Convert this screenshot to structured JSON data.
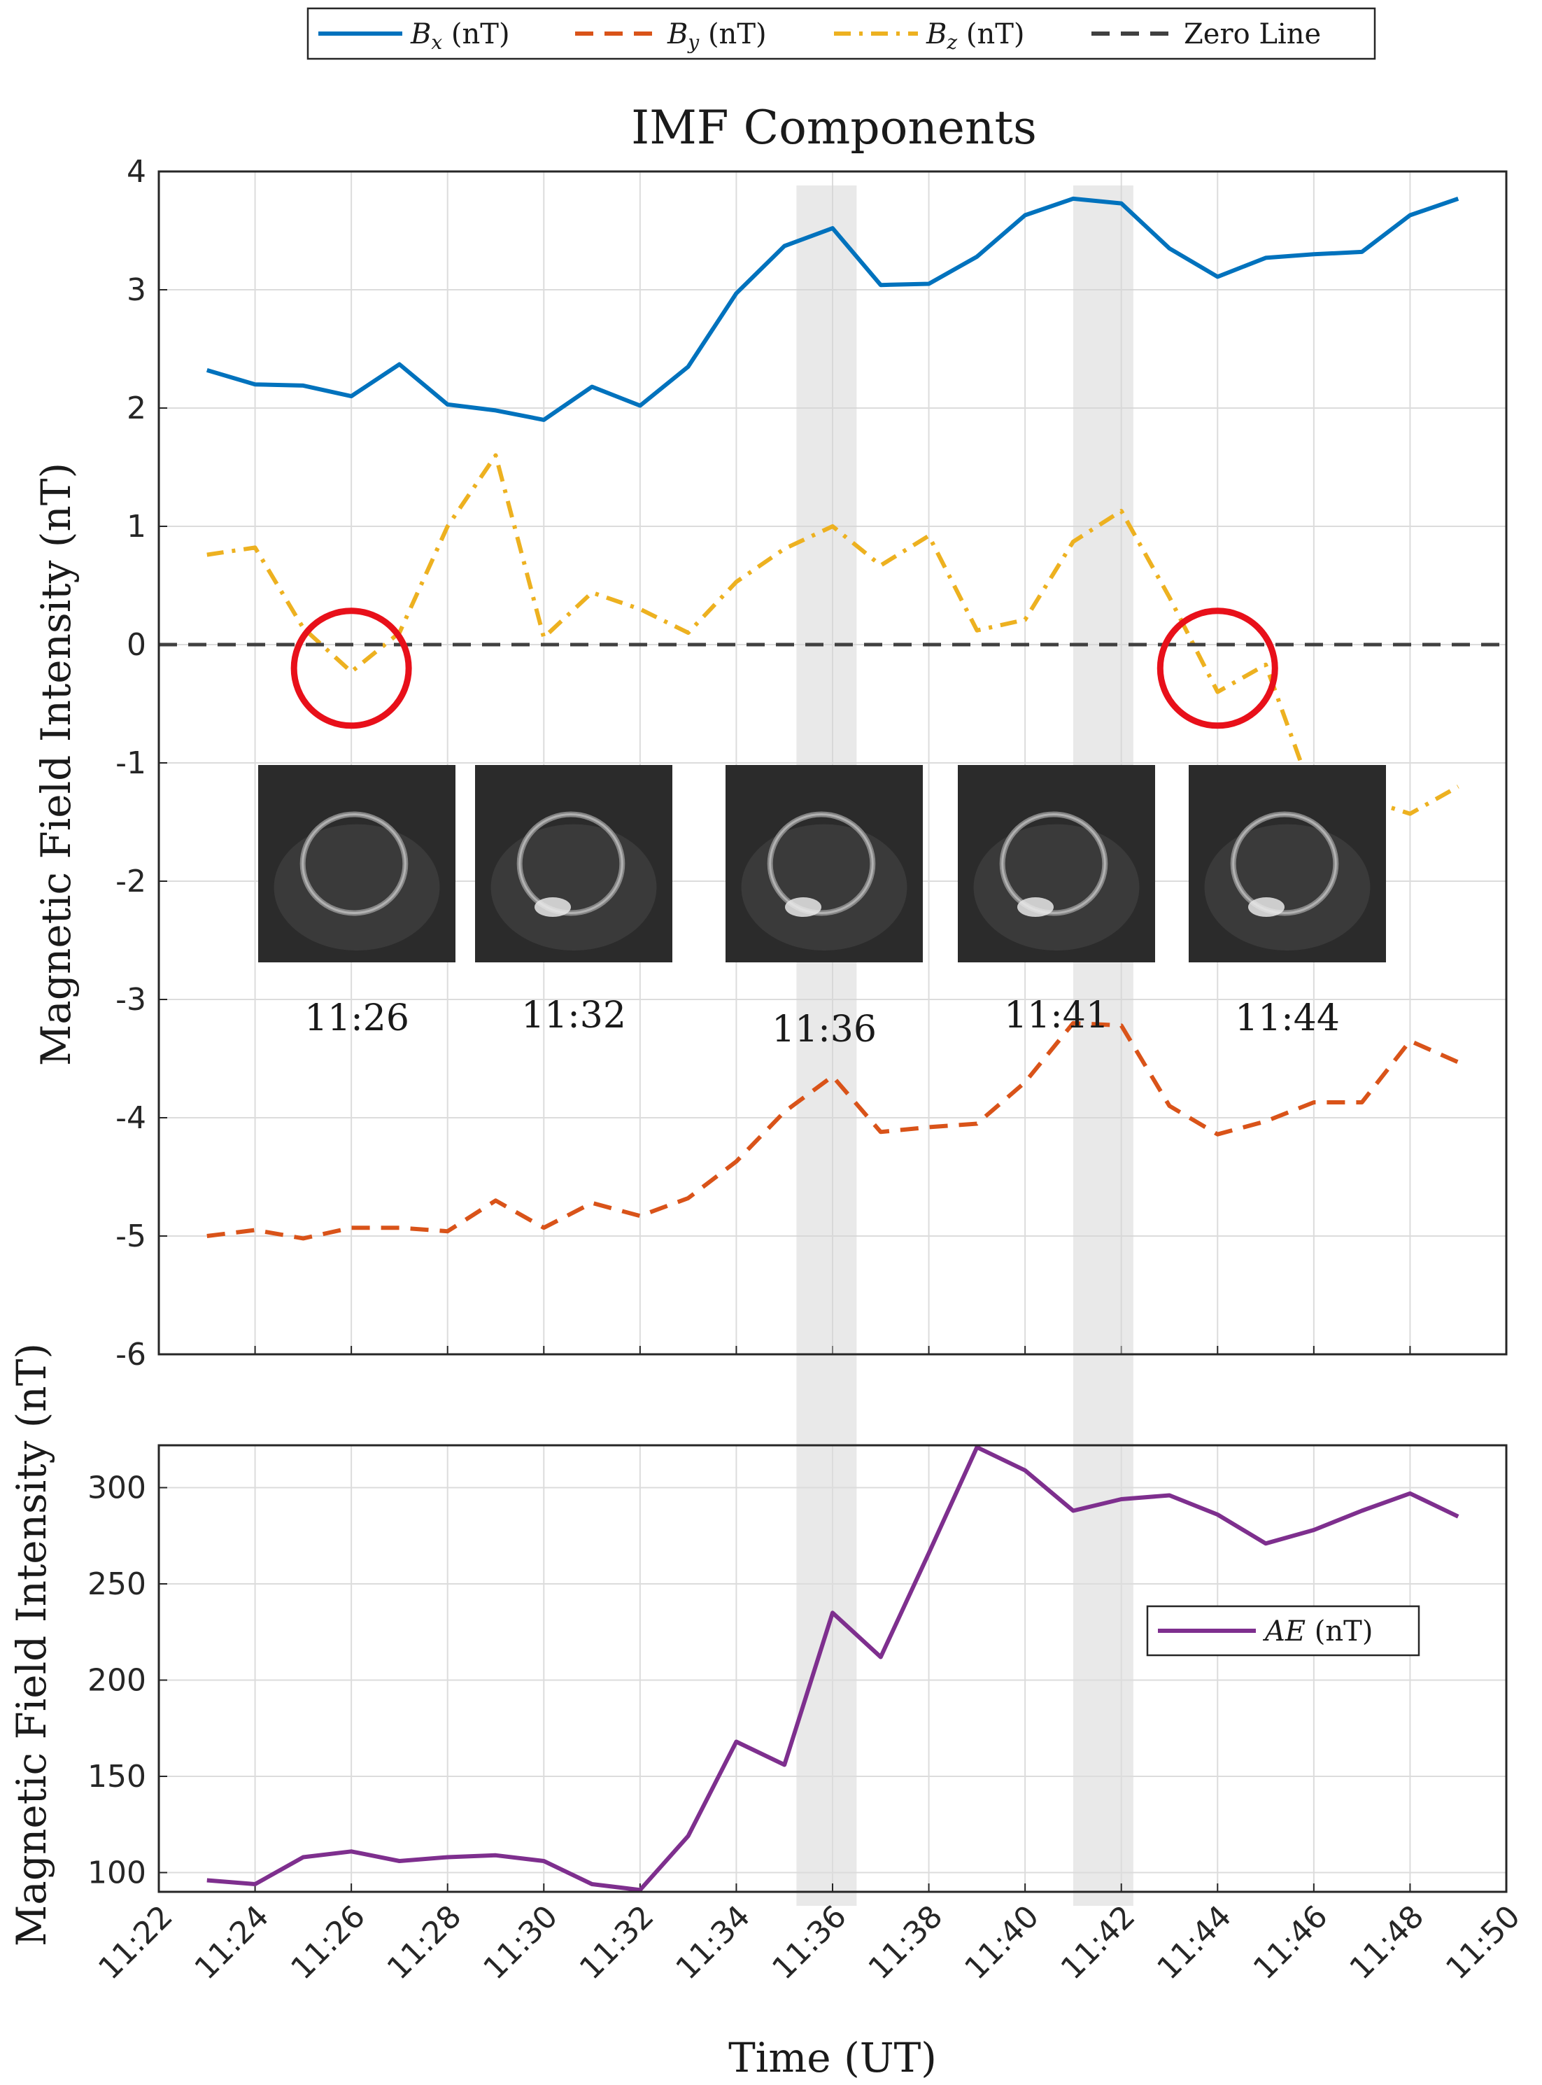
{
  "chart_data": [
    {
      "type": "line",
      "title": "IMF Components",
      "xlabel": "",
      "ylabel": "Magnetic Field Intensity (nT)",
      "x_range": [
        "11:22",
        "11:50"
      ],
      "ylim": [
        -6,
        4
      ],
      "y_ticks": [
        "-6",
        "-5",
        "-4",
        "-3",
        "-2",
        "-1",
        "0",
        "1",
        "2",
        "3",
        "4"
      ],
      "grid": true,
      "legend_position": "top (outside)",
      "x": [
        "11:23",
        "11:24",
        "11:25",
        "11:26",
        "11:27",
        "11:28",
        "11:29",
        "11:30",
        "11:31",
        "11:32",
        "11:33",
        "11:34",
        "11:35",
        "11:36",
        "11:37",
        "11:38",
        "11:39",
        "11:40",
        "11:41",
        "11:42",
        "11:43",
        "11:44",
        "11:45",
        "11:46",
        "11:47",
        "11:48",
        "11:49"
      ],
      "series": [
        {
          "name": "Bx (nT)",
          "label_main": "B",
          "label_sub": "x",
          "label_unit": " (nT)",
          "color": "#0072BD",
          "dash": "solid",
          "values": [
            2.32,
            2.2,
            2.19,
            2.1,
            2.37,
            2.03,
            1.98,
            1.9,
            2.18,
            2.02,
            2.35,
            2.97,
            3.37,
            3.52,
            3.04,
            3.05,
            3.28,
            3.63,
            3.77,
            3.73,
            3.35,
            3.11,
            3.27,
            3.3,
            3.32,
            3.63,
            3.77
          ]
        },
        {
          "name": "By (nT)",
          "label_main": "B",
          "label_sub": "y",
          "label_unit": " (nT)",
          "color": "#D95319",
          "dash": "dashed",
          "values": [
            -5.0,
            -4.95,
            -5.02,
            -4.93,
            -4.93,
            -4.96,
            -4.7,
            -4.93,
            -4.72,
            -4.83,
            -4.68,
            -4.37,
            -3.95,
            -3.65,
            -4.12,
            -4.08,
            -4.05,
            -3.7,
            -3.2,
            -3.22,
            -3.9,
            -4.14,
            -4.03,
            -3.87,
            -3.87,
            -3.35,
            -3.53
          ]
        },
        {
          "name": "Bz (nT)",
          "label_main": "B",
          "label_sub": "z",
          "label_unit": " (nT)",
          "color": "#EDB120",
          "dash": "dashdot",
          "values": [
            0.76,
            0.82,
            0.14,
            -0.23,
            0.1,
            1.0,
            1.6,
            0.06,
            0.44,
            0.3,
            0.1,
            0.53,
            0.81,
            1.0,
            0.67,
            0.92,
            0.12,
            0.21,
            0.87,
            1.13,
            0.4,
            -0.4,
            -0.17,
            -1.3,
            -1.3,
            -1.43,
            -1.2
          ]
        },
        {
          "name": "Zero Line",
          "color": "#404040",
          "dash": "dashed",
          "values": "constant 0"
        }
      ],
      "highlight_bands": [
        [
          "11:35:15",
          "11:36:30"
        ],
        [
          "11:41:00",
          "11:42:15"
        ]
      ],
      "annotations": {
        "circles_at": [
          "11:26",
          "11:44"
        ],
        "thumbnails": [
          "11:26",
          "11:32",
          "11:36",
          "11:41",
          "11:44"
        ]
      }
    },
    {
      "type": "line",
      "title": "",
      "xlabel": "Time (UT)",
      "ylabel": "Magnetic Field Intensity (nT)",
      "x_ticks": [
        "11:22",
        "11:24",
        "11:26",
        "11:28",
        "11:30",
        "11:32",
        "11:34",
        "11:36",
        "11:38",
        "11:40",
        "11:42",
        "11:44",
        "11:46",
        "11:48",
        "11:50"
      ],
      "ylim": [
        90,
        322
      ],
      "y_ticks": [
        "100",
        "150",
        "200",
        "250",
        "300"
      ],
      "grid": true,
      "legend_position": "middle-right (inside)",
      "x": [
        "11:23",
        "11:24",
        "11:25",
        "11:26",
        "11:27",
        "11:28",
        "11:29",
        "11:30",
        "11:31",
        "11:32",
        "11:33",
        "11:34",
        "11:35",
        "11:36",
        "11:37",
        "11:38",
        "11:39",
        "11:40",
        "11:41",
        "11:42",
        "11:43",
        "11:44",
        "11:45",
        "11:46",
        "11:47",
        "11:48",
        "11:49"
      ],
      "series": [
        {
          "name": "AE (nT)",
          "label_main": "AE",
          "label_unit": " (nT)",
          "color": "#7E2F8E",
          "dash": "solid",
          "values": [
            96,
            94,
            108,
            111,
            106,
            108,
            109,
            106,
            94,
            91,
            119,
            168,
            156,
            235,
            212,
            266,
            321,
            309,
            288,
            294,
            296,
            286,
            271,
            278,
            288,
            297,
            285
          ]
        }
      ]
    }
  ],
  "icons": {
    "circle_color": "#E8101A",
    "aurora_thumbnail": "aurora-image-icon"
  }
}
